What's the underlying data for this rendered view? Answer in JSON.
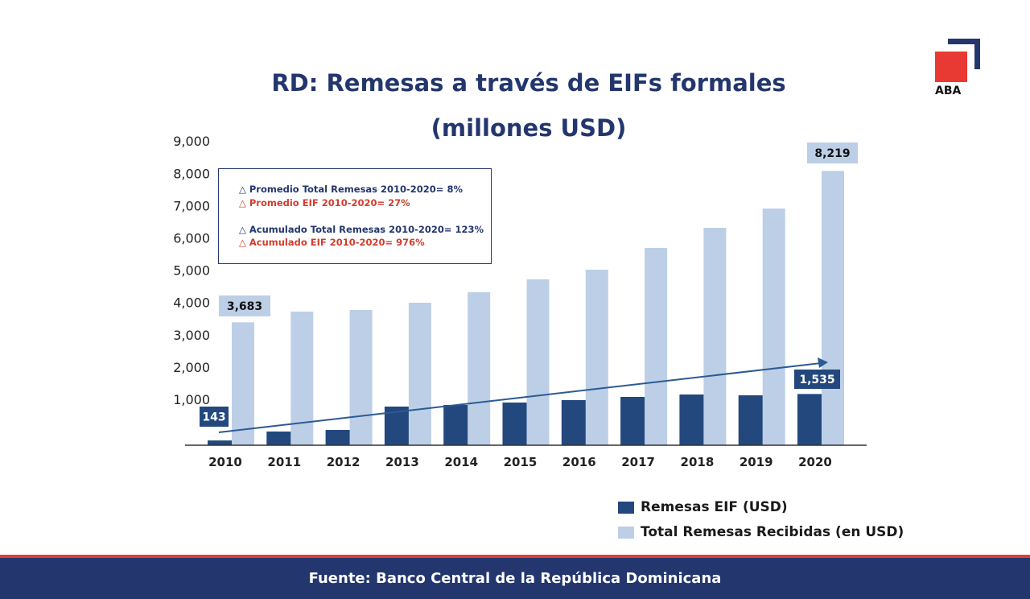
{
  "logo": {
    "text": "ABA",
    "colors": {
      "square": "#e83a33",
      "frame": "#23366e"
    }
  },
  "chart_data": {
    "type": "bar",
    "title": "RD: Remesas a través de EIFs formales",
    "subtitle": "(millones USD)",
    "categories": [
      "2010",
      "2011",
      "2012",
      "2013",
      "2014",
      "2015",
      "2016",
      "2017",
      "2018",
      "2019",
      "2020"
    ],
    "series": [
      {
        "name": "Remesas EIF (USD)",
        "color": "#23487e",
        "values": [
          143,
          410,
          458,
          1158,
          1206,
          1279,
          1351,
          1448,
          1520,
          1496,
          1535
        ]
      },
      {
        "name": "Total Remesas Recibidas (en USD)",
        "color": "#bccfe6",
        "values": [
          3683,
          4005,
          4053,
          4270,
          4584,
          4970,
          5260,
          5911,
          6514,
          7093,
          8219
        ]
      }
    ],
    "data_labels": [
      {
        "series": 0,
        "category": "2010",
        "text": "143"
      },
      {
        "series": 1,
        "category": "2010",
        "text": "3,683"
      },
      {
        "series": 1,
        "category": "2020",
        "text": "8,219"
      },
      {
        "series": 0,
        "category": "2020",
        "text": "1,535"
      }
    ],
    "yticks": [
      "1,000",
      "2,000",
      "3,000",
      "4,000",
      "5,000",
      "6,000",
      "7,000",
      "8,000",
      "9,000"
    ],
    "ylim": [
      0,
      9000
    ],
    "grid": false,
    "legend": "bottom-right",
    "trend_arrow": true
  },
  "annotations": {
    "line1": "△ Promedio Total Remesas 2010-2020= 8%",
    "line2": "△ Promedio EIF 2010-2020= 27%",
    "line3": "△ Acumulado Total Remesas 2010-2020= 123%",
    "line4": "△ Acumulado EIF 2010-2020= 976%"
  },
  "footer": "Fuente: Banco Central de la República Dominicana"
}
